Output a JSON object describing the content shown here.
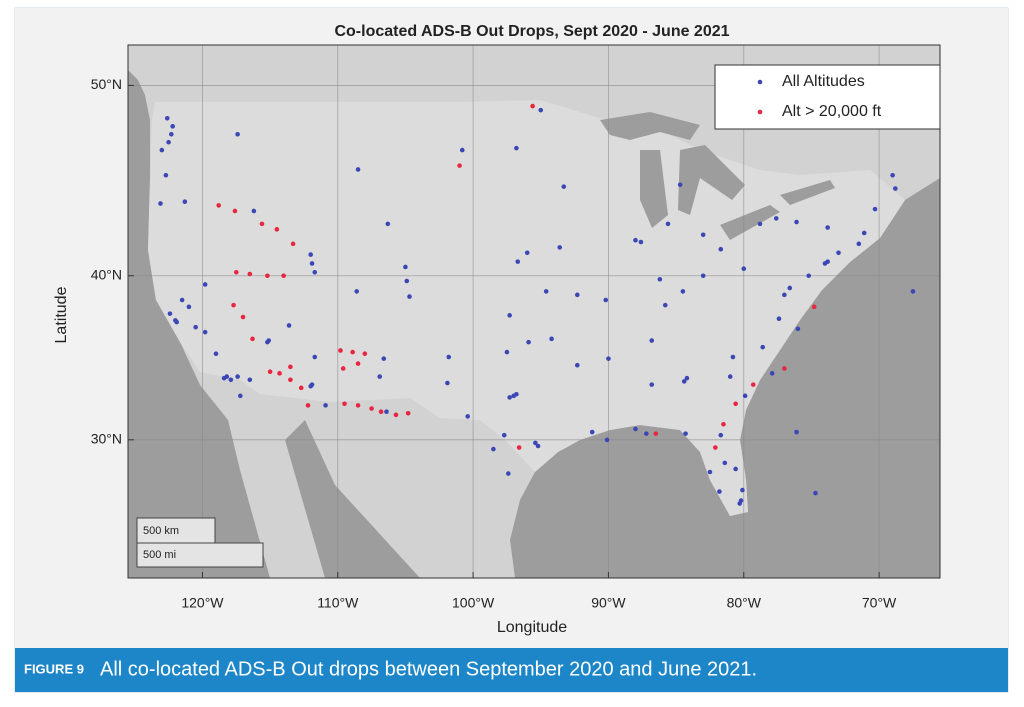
{
  "chart_data": {
    "type": "scatter",
    "title": "Co-located ADS-B Out Drops, Sept 2020 - June 2021",
    "xlabel": "Longitude",
    "ylabel": "Latitude",
    "xlim": [
      -125.5,
      -65.5
    ],
    "ylim": [
      20.7,
      51.9
    ],
    "yscale": "mercator",
    "grid": true,
    "legend": "upper right",
    "xticks": [
      {
        "value": -120,
        "label": "120°W"
      },
      {
        "value": -110,
        "label": "110°W"
      },
      {
        "value": -100,
        "label": "100°W"
      },
      {
        "value": -90,
        "label": "90°W"
      },
      {
        "value": -80,
        "label": "80°W"
      },
      {
        "value": -70,
        "label": "70°W"
      }
    ],
    "yticks": [
      {
        "value": 30,
        "label": "30°N"
      },
      {
        "value": 40,
        "label": "40°N"
      },
      {
        "value": 50,
        "label": "50°N"
      }
    ],
    "scale_bar": [
      "500 km",
      "500 mi"
    ],
    "series": [
      {
        "name": "All Altitudes",
        "color": "#3b47b4",
        "x": [
          -122.3,
          -122.5,
          -122.2,
          -122.6,
          -123,
          -122.7,
          -123.1,
          -121.3,
          -117.4,
          -116.2,
          -111.9,
          -112,
          -111.7,
          -122.4,
          -122,
          -121.9,
          -121.5,
          -121,
          -120.5,
          -119.8,
          -119,
          -118.2,
          -118.4,
          -117.9,
          -117.2,
          -117.4,
          -116.5,
          -115.2,
          -115.1,
          -112,
          -111.9,
          -110.9,
          -111.7,
          -106.6,
          -106.4,
          -104.9,
          -104.7,
          -105,
          -108.5,
          -106.3,
          -100.8,
          -96.8,
          -96.7,
          -96,
          -97.5,
          -95.9,
          -97.3,
          -94.6,
          -93.3,
          -93.6,
          -90.2,
          -87.6,
          -88,
          -86.2,
          -85.6,
          -83,
          -83,
          -84.5,
          -81.7,
          -80,
          -85.8,
          -86.8,
          -90,
          -86.8,
          -84.4,
          -84.2,
          -81,
          -80.8,
          -78.6,
          -77.4,
          -77,
          -76.6,
          -75.2,
          -74,
          -73.8,
          -73,
          -71.1,
          -71.5,
          -70.3,
          -73.8,
          -76.1,
          -77.6,
          -78.8,
          -97,
          -96.8,
          -97.3,
          -95.4,
          -95.2,
          -98.5,
          -97.7,
          -97.4,
          -90.1,
          -91.2,
          -88,
          -87.2,
          -82.5,
          -81.4,
          -80.2,
          -80.3,
          -81.8,
          -80.1,
          -81.7,
          -84.3,
          -80.6,
          -76,
          -77.9,
          -79.9,
          -92.3,
          -94.2,
          -92.3,
          -101.8,
          -101.9,
          -100.4,
          -106.9,
          -108.6,
          -113.6,
          -119.8,
          -67.5,
          -74.7,
          -76.1,
          -69,
          -68.8,
          -84.7,
          -95
        ],
        "y": [
          47.6,
          47.2,
          48,
          48.4,
          46.8,
          45.5,
          44,
          44.1,
          47.6,
          43.6,
          40.7,
          41.2,
          40.2,
          37.8,
          37.4,
          37.3,
          38.6,
          38.2,
          37,
          36.7,
          35.4,
          34,
          33.9,
          33.8,
          32.8,
          34,
          33.8,
          36.1,
          36.2,
          33.4,
          33.5,
          32.2,
          35.2,
          35.1,
          31.8,
          39.7,
          38.8,
          40.5,
          45.8,
          42.9,
          46.8,
          46.9,
          40.8,
          41.3,
          35.5,
          36.1,
          37.7,
          39.1,
          44.9,
          41.6,
          38.6,
          41.9,
          42,
          39.8,
          42.9,
          42.3,
          40,
          39.1,
          41.5,
          40.4,
          38.3,
          36.2,
          35.1,
          33.5,
          33.7,
          33.9,
          34,
          35.2,
          35.8,
          37.5,
          38.9,
          39.3,
          40,
          40.7,
          40.8,
          41.3,
          42.4,
          41.8,
          43.7,
          42.7,
          43,
          43.2,
          42.9,
          32.8,
          32.9,
          32.7,
          29.8,
          29.6,
          29.4,
          30.3,
          27.8,
          30,
          30.5,
          30.7,
          30.4,
          27.9,
          28.5,
          26,
          25.8,
          26.6,
          26.7,
          30.3,
          30.4,
          28.1,
          36.9,
          34.2,
          32.8,
          34.7,
          36.3,
          38.9,
          35.2,
          33.6,
          31.5,
          34,
          39.1,
          37.1,
          39.5,
          39.1,
          26.5,
          30.5,
          45.5,
          44.8,
          45,
          48.8
        ]
      },
      {
        "name": "Alt > 20,000 ft",
        "color": "#e8263f",
        "x": [
          -117.5,
          -116.5,
          -115.2,
          -114,
          -113.3,
          -114.5,
          -115.6,
          -117.6,
          -118.8,
          -117.7,
          -117,
          -116.3,
          -115,
          -114.3,
          -113.5,
          -112.7,
          -109.8,
          -108.9,
          -108,
          -109.6,
          -108.5,
          -109.5,
          -108.5,
          -107.5,
          -106.8,
          -105.7,
          -104.8,
          -112.2,
          -113.5,
          -95.6,
          -101,
          -96.6,
          -82.1,
          -81.5,
          -80.6,
          -79.3,
          -86.5,
          -77,
          -74.8
        ],
        "y": [
          40.2,
          40.1,
          40,
          40,
          41.8,
          42.6,
          42.9,
          43.6,
          43.9,
          38.3,
          37.6,
          36.3,
          34.3,
          34.2,
          33.8,
          33.3,
          35.6,
          35.5,
          35.4,
          34.5,
          34.8,
          32.3,
          32.2,
          32,
          31.8,
          31.6,
          31.7,
          32.2,
          34.6,
          49,
          46,
          29.5,
          29.5,
          31,
          32.3,
          33.5,
          30.4,
          34.5,
          38.2
        ]
      }
    ]
  },
  "caption": {
    "label": "FIGURE 9",
    "text": "All co-located ADS-B Out drops between September 2020 and June 2021."
  }
}
